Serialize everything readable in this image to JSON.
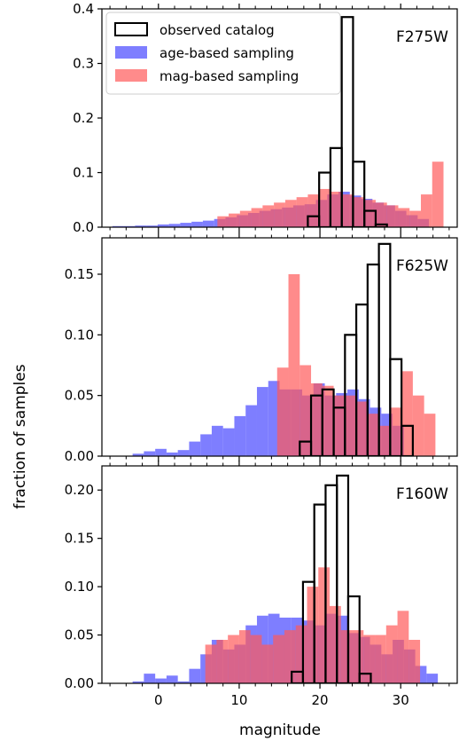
{
  "figure": {
    "xlabel": "magnitude",
    "ylabel": "fraction of samples"
  },
  "legend": {
    "entries": [
      {
        "key": "observed",
        "label": "observed catalog"
      },
      {
        "key": "age",
        "label": "age-based sampling"
      },
      {
        "key": "mag",
        "label": "mag-based sampling"
      }
    ],
    "location": "upper-left of top panel"
  },
  "colors": {
    "observed": "#000000",
    "age": "#5a5aff",
    "mag": "#ff5a5a",
    "overlap": "#b03a7a"
  },
  "chart_data": [
    {
      "type": "histogram",
      "title": "F275W",
      "xlim": [
        -7,
        37
      ],
      "ylim": [
        0,
        0.4
      ],
      "xticks": [
        0,
        10,
        20,
        30
      ],
      "yticks": [
        0.0,
        0.1,
        0.2,
        0.3,
        0.4
      ],
      "ytick_labels": [
        "0.0",
        "0.1",
        "0.2",
        "0.3",
        "0.4"
      ],
      "bin_width": 1.4,
      "series": [
        {
          "name": "age-based sampling",
          "x_start": -5.7,
          "values": [
            0.002,
            0.002,
            0.003,
            0.003,
            0.005,
            0.006,
            0.008,
            0.01,
            0.012,
            0.015,
            0.018,
            0.022,
            0.026,
            0.03,
            0.033,
            0.036,
            0.04,
            0.042,
            0.05,
            0.06,
            0.065,
            0.058,
            0.052,
            0.045,
            0.04,
            0.03,
            0.022,
            0.015
          ]
        },
        {
          "name": "mag-based sampling",
          "x_start": 7.3,
          "values": [
            0.02,
            0.025,
            0.03,
            0.035,
            0.04,
            0.045,
            0.05,
            0.055,
            0.06,
            0.07,
            0.065,
            0.06,
            0.055,
            0.05,
            0.045,
            0.04,
            0.035,
            0.03,
            0.06,
            0.12
          ]
        },
        {
          "name": "observed catalog",
          "x_start": 18.5,
          "values": [
            0.02,
            0.1,
            0.145,
            0.385,
            0.12,
            0.03,
            0.005
          ]
        }
      ]
    },
    {
      "type": "histogram",
      "title": "F625W",
      "xlim": [
        -7,
        37
      ],
      "ylim": [
        0,
        0.18
      ],
      "xticks": [
        0,
        10,
        20,
        30
      ],
      "yticks": [
        0.0,
        0.05,
        0.1,
        0.15
      ],
      "ytick_labels": [
        "0.00",
        "0.05",
        "0.10",
        "0.15"
      ],
      "bin_width": 1.4,
      "series": [
        {
          "name": "age-based sampling",
          "x_start": -3.2,
          "values": [
            0.002,
            0.004,
            0.006,
            0.003,
            0.005,
            0.012,
            0.018,
            0.025,
            0.023,
            0.033,
            0.042,
            0.057,
            0.062,
            0.055,
            0.055,
            0.05,
            0.06,
            0.05,
            0.052,
            0.055,
            0.047,
            0.04,
            0.035,
            0.025
          ]
        },
        {
          "name": "mag-based sampling",
          "x_start": 14.7,
          "values": [
            0.073,
            0.15,
            0.075,
            0.06,
            0.058,
            0.05,
            0.05,
            0.045,
            0.035,
            0.025,
            0.04,
            0.07,
            0.05,
            0.035
          ]
        },
        {
          "name": "observed catalog",
          "x_start": 17.5,
          "values": [
            0.012,
            0.05,
            0.055,
            0.04,
            0.1,
            0.125,
            0.158,
            0.175,
            0.08,
            0.025
          ]
        }
      ]
    },
    {
      "type": "histogram",
      "title": "F160W",
      "xlim": [
        -7,
        37
      ],
      "ylim": [
        0,
        0.225
      ],
      "xticks": [
        0,
        10,
        20,
        30
      ],
      "xtick_labels": [
        "0",
        "10",
        "20",
        "30"
      ],
      "yticks": [
        0.0,
        0.05,
        0.1,
        0.15,
        0.2
      ],
      "ytick_labels": [
        "0.00",
        "0.05",
        "0.10",
        "0.15",
        "0.20"
      ],
      "bin_width": 1.4,
      "series": [
        {
          "name": "age-based sampling",
          "x_start": -3.2,
          "values": [
            0.002,
            0.01,
            0.005,
            0.008,
            0.002,
            0.015,
            0.03,
            0.045,
            0.035,
            0.04,
            0.06,
            0.07,
            0.072,
            0.068,
            0.068,
            0.065,
            0.06,
            0.072,
            0.07,
            0.052,
            0.048,
            0.04,
            0.03,
            0.045,
            0.035,
            0.018,
            0.01
          ]
        },
        {
          "name": "mag-based sampling",
          "x_start": 5.8,
          "values": [
            0.04,
            0.045,
            0.05,
            0.055,
            0.05,
            0.04,
            0.05,
            0.055,
            0.06,
            0.1,
            0.12,
            0.08,
            0.055,
            0.055,
            0.05,
            0.05,
            0.06,
            0.075,
            0.045
          ]
        },
        {
          "name": "observed catalog",
          "x_start": 16.5,
          "values": [
            0.012,
            0.105,
            0.185,
            0.205,
            0.215,
            0.09,
            0.01
          ]
        }
      ]
    }
  ]
}
